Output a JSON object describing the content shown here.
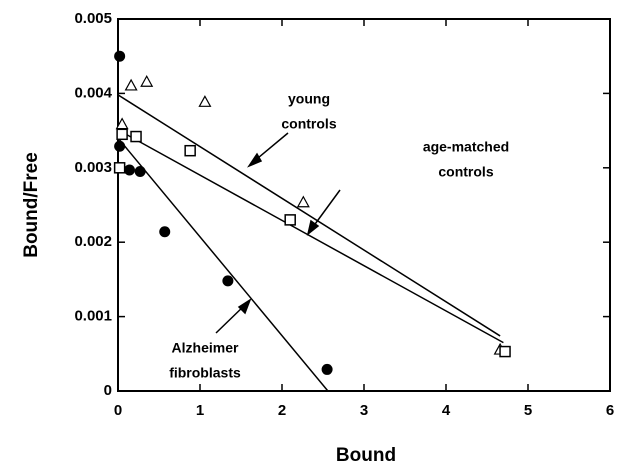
{
  "chart_data": {
    "type": "scatter",
    "x_label": "Bound",
    "y_label": "Bound/Free",
    "xlim": [
      0,
      6
    ],
    "ylim": [
      0,
      0.005
    ],
    "xticks": [
      0,
      1,
      2,
      3,
      4,
      5,
      6
    ],
    "yticks": [
      0,
      0.001,
      0.002,
      0.003,
      0.004,
      0.005
    ],
    "series": [
      {
        "marker": "triangle",
        "x": [
          0.05,
          0.16,
          0.35,
          1.06,
          2.26,
          4.66
        ],
        "values": [
          0.00358,
          0.0041,
          0.00415,
          0.00388,
          0.00253,
          0.00055
        ]
      },
      {
        "marker": "square",
        "x": [
          0.02,
          0.05,
          0.22,
          0.88,
          2.1,
          4.72
        ],
        "values": [
          0.003,
          0.00345,
          0.00342,
          0.00323,
          0.0023,
          0.00053
        ]
      },
      {
        "marker": "circle",
        "x": [
          0.02,
          0.02,
          0.14,
          0.27,
          0.57,
          1.34,
          2.55
        ],
        "values": [
          0.0045,
          0.00329,
          0.00297,
          0.00295,
          0.00214,
          0.00148,
          0.00029
        ]
      }
    ],
    "fit_lines": [
      {
        "x": [
          0,
          4.66
        ],
        "values": [
          0.00398,
          0.00074
        ]
      },
      {
        "x": [
          0,
          4.7
        ],
        "values": [
          0.00351,
          0.00065
        ]
      },
      {
        "x": [
          0,
          2.56
        ],
        "values": [
          0.0034,
          0
        ]
      }
    ],
    "annotations": [
      {
        "lines": [
          "young",
          "controls"
        ]
      },
      {
        "lines": [
          "age-matched",
          "controls"
        ]
      },
      {
        "lines": [
          "Alzheimer",
          "fibroblasts"
        ]
      }
    ]
  }
}
